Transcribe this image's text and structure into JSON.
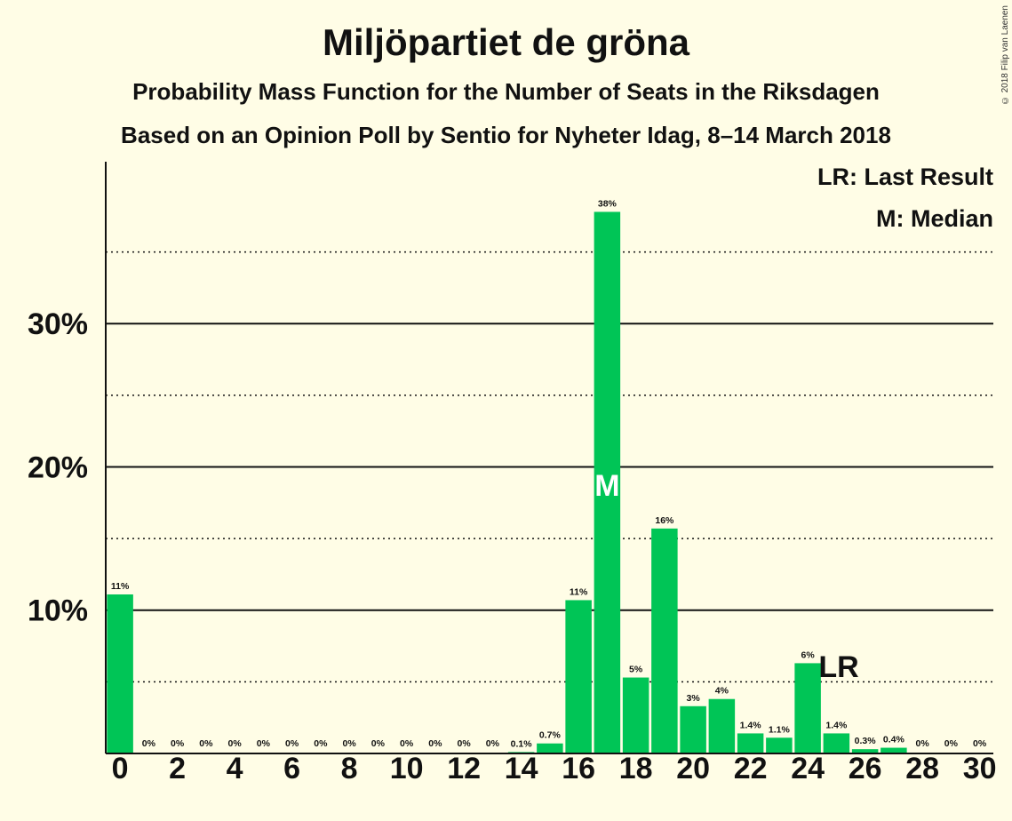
{
  "title": "Miljöpartiet de gröna",
  "subtitle": "Probability Mass Function for the Number of Seats in the Riksdagen",
  "subtitle2": "Based on an Opinion Poll by Sentio for Nyheter Idag, 8–14 March 2018",
  "copyright": "© 2018 Filip van Laenen",
  "legend": {
    "last_result": "LR: Last Result",
    "median": "M: Median"
  },
  "colors": {
    "background": "#fffde6",
    "bar": "#00c556",
    "text": "#111111"
  },
  "chart_data": {
    "type": "bar",
    "x": [
      0,
      1,
      2,
      3,
      4,
      5,
      6,
      7,
      8,
      9,
      10,
      11,
      12,
      13,
      14,
      15,
      16,
      17,
      18,
      19,
      20,
      21,
      22,
      23,
      24,
      25,
      26,
      27,
      28,
      29,
      30
    ],
    "values": [
      11.1,
      0,
      0,
      0,
      0,
      0,
      0,
      0,
      0,
      0,
      0,
      0,
      0,
      0,
      0.1,
      0.7,
      10.7,
      37.8,
      5.3,
      15.7,
      3.3,
      3.8,
      1.4,
      1.1,
      6.3,
      1.4,
      0.3,
      0.4,
      0,
      0,
      0
    ],
    "labels": [
      "11%",
      "0%",
      "0%",
      "0%",
      "0%",
      "0%",
      "0%",
      "0%",
      "0%",
      "0%",
      "0%",
      "0%",
      "0%",
      "0%",
      "0.1%",
      "0.7%",
      "11%",
      "38%",
      "5%",
      "16%",
      "3%",
      "4%",
      "1.4%",
      "1.1%",
      "6%",
      "1.4%",
      "0.3%",
      "0.4%",
      "0%",
      "0%",
      "0%"
    ],
    "xticks": [
      "0",
      "2",
      "4",
      "6",
      "8",
      "10",
      "12",
      "14",
      "16",
      "18",
      "20",
      "22",
      "24",
      "26",
      "28",
      "30"
    ],
    "yticks": [
      {
        "value": 10,
        "label": "10%"
      },
      {
        "value": 20,
        "label": "20%"
      },
      {
        "value": 30,
        "label": "30%"
      }
    ],
    "minor_gridlines": [
      5,
      15,
      25,
      35
    ],
    "ylim": [
      0,
      41.3
    ],
    "median": {
      "x": 17,
      "label": "M"
    },
    "last_result": {
      "x": 25,
      "label": "LR"
    }
  }
}
